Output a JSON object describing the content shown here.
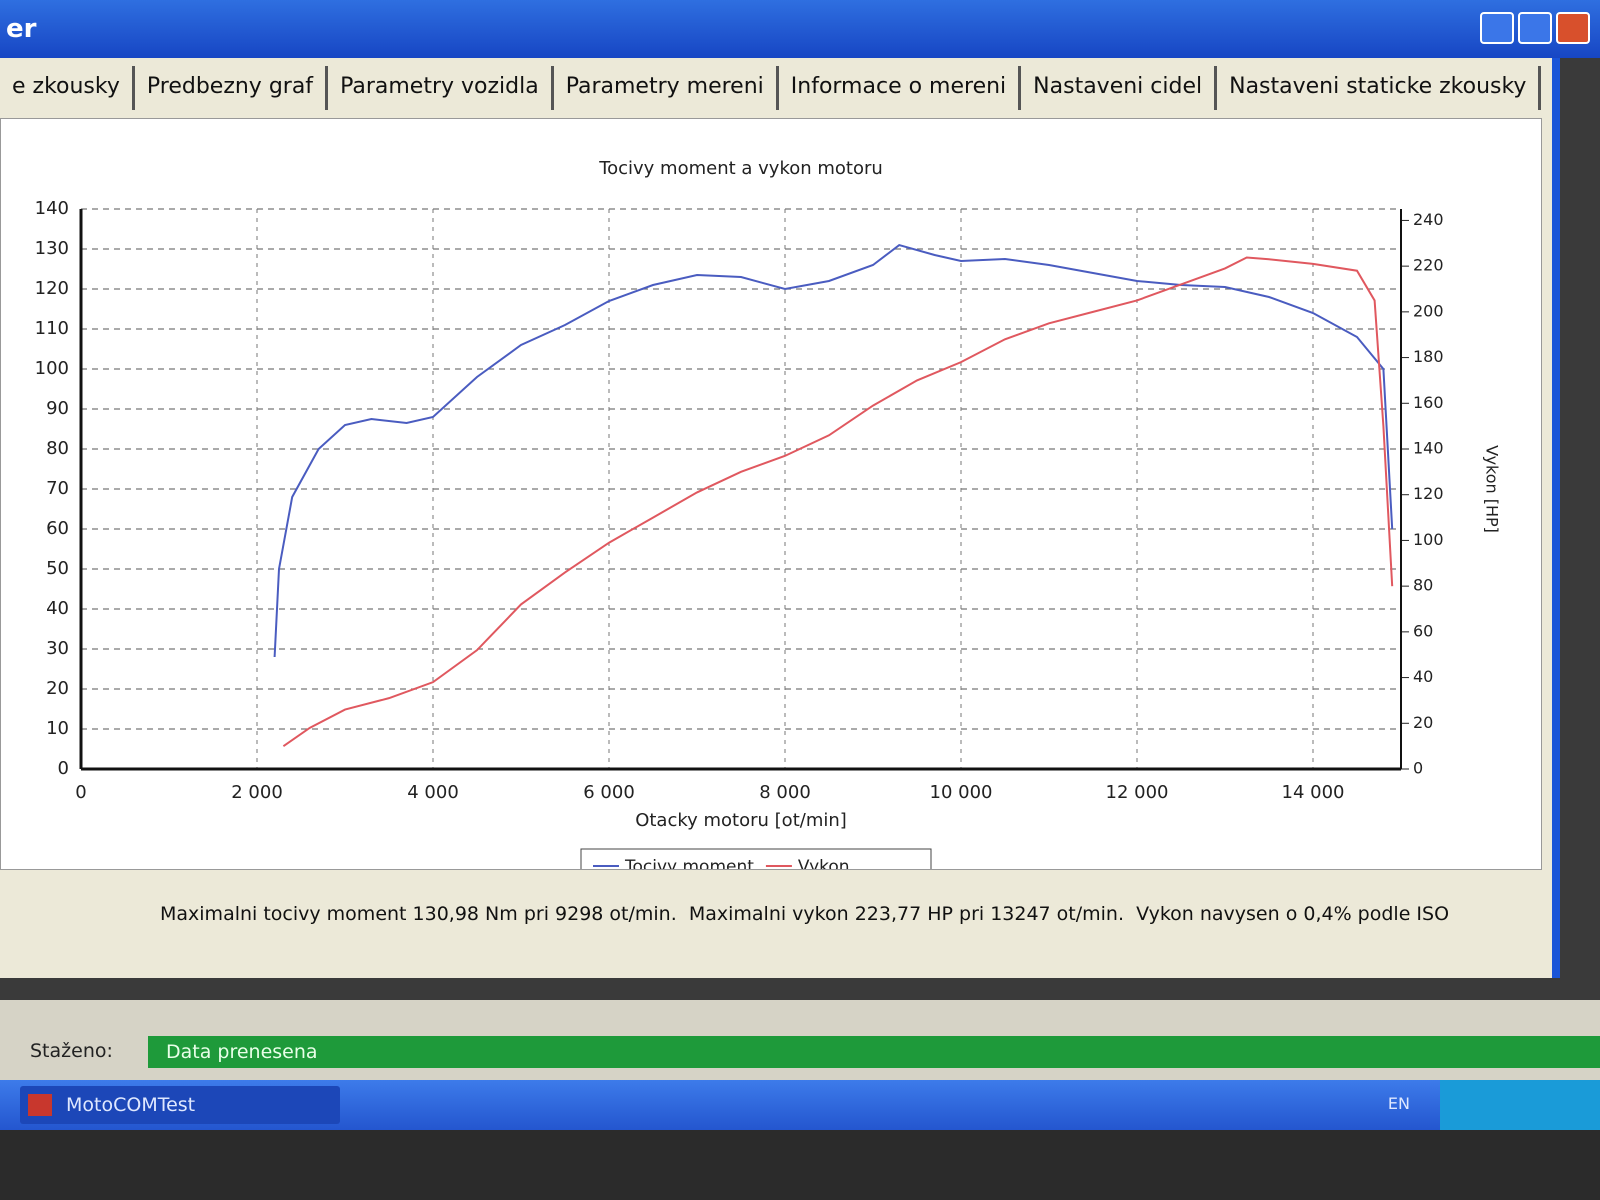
{
  "window": {
    "title": "er"
  },
  "tabs": [
    "e zkousky",
    "Predbezny graf",
    "Parametry vozidla",
    "Parametry mereni",
    "Informace o mereni",
    "Nastaveni cidel",
    "Nastaveni staticke zkousky"
  ],
  "chart_data": {
    "type": "line",
    "title": "Tocivy moment a vykon motoru",
    "x_label": "Otacky motoru [ot/min]",
    "y2_label": "Vykon [HP]",
    "xlim": [
      0,
      15000
    ],
    "xticks": [
      0,
      {
        "value": 2000,
        "label": "2 000"
      },
      {
        "value": 4000,
        "label": "4 000"
      },
      {
        "value": 6000,
        "label": "6 000"
      },
      {
        "value": 8000,
        "label": "8 000"
      },
      {
        "value": 10000,
        "label": "10 000"
      },
      {
        "value": 12000,
        "label": "12 000"
      },
      {
        "value": 14000,
        "label": "14 000"
      }
    ],
    "ylim": [
      0,
      140
    ],
    "yticks": [
      0,
      10,
      20,
      30,
      40,
      50,
      60,
      70,
      80,
      90,
      100,
      110,
      120,
      130,
      140
    ],
    "y2lim": [
      0,
      245
    ],
    "y2ticks": [
      0,
      20,
      40,
      60,
      80,
      100,
      120,
      140,
      160,
      180,
      200,
      220,
      240
    ],
    "grid": true,
    "legend": "bottom",
    "series": [
      {
        "name": "Tocivy moment",
        "color": "#4a5cc0",
        "x": [
          2200,
          2250,
          2400,
          2700,
          3000,
          3300,
          3700,
          4000,
          4500,
          5000,
          5500,
          6000,
          6500,
          7000,
          7500,
          8000,
          8500,
          9000,
          9298,
          9700,
          10000,
          10500,
          11000,
          11500,
          12000,
          12500,
          13000,
          13500,
          14000,
          14500,
          14800,
          14900
        ],
        "values": [
          28,
          50,
          68,
          80,
          86,
          87.5,
          86.5,
          88,
          98,
          106,
          111,
          117,
          121,
          123.5,
          123,
          120,
          122,
          126,
          130.98,
          128.5,
          127,
          127.5,
          126,
          124,
          122,
          121,
          120.5,
          118,
          114,
          108,
          100,
          60
        ]
      },
      {
        "name": "Vykon",
        "color": "#e0585f",
        "axis": "y2",
        "x": [
          2300,
          2600,
          3000,
          3500,
          4000,
          4500,
          5000,
          5500,
          6000,
          6500,
          7000,
          7500,
          8000,
          8500,
          9000,
          9500,
          10000,
          10500,
          11000,
          11500,
          12000,
          12500,
          13000,
          13247,
          13500,
          14000,
          14500,
          14700,
          14800,
          14900
        ],
        "values": [
          10,
          18,
          26,
          31,
          38,
          52,
          72,
          86,
          99,
          110,
          121,
          130,
          137,
          146,
          159,
          170,
          178,
          188,
          195,
          200,
          205,
          212,
          219,
          223.77,
          223,
          221,
          218,
          205,
          150,
          80
        ]
      }
    ]
  },
  "summary": "Maximalni tocivy moment 130,98 Nm pri 9298 ot/min.  Maximalni vykon 223,77 HP pri 13247 ot/min.  Vykon navysen o 0,4% podle ISO",
  "status": {
    "label": "Staženo:",
    "message": "Data prenesena"
  },
  "taskbar": {
    "app": "MotoCOMTest",
    "language": "EN"
  }
}
